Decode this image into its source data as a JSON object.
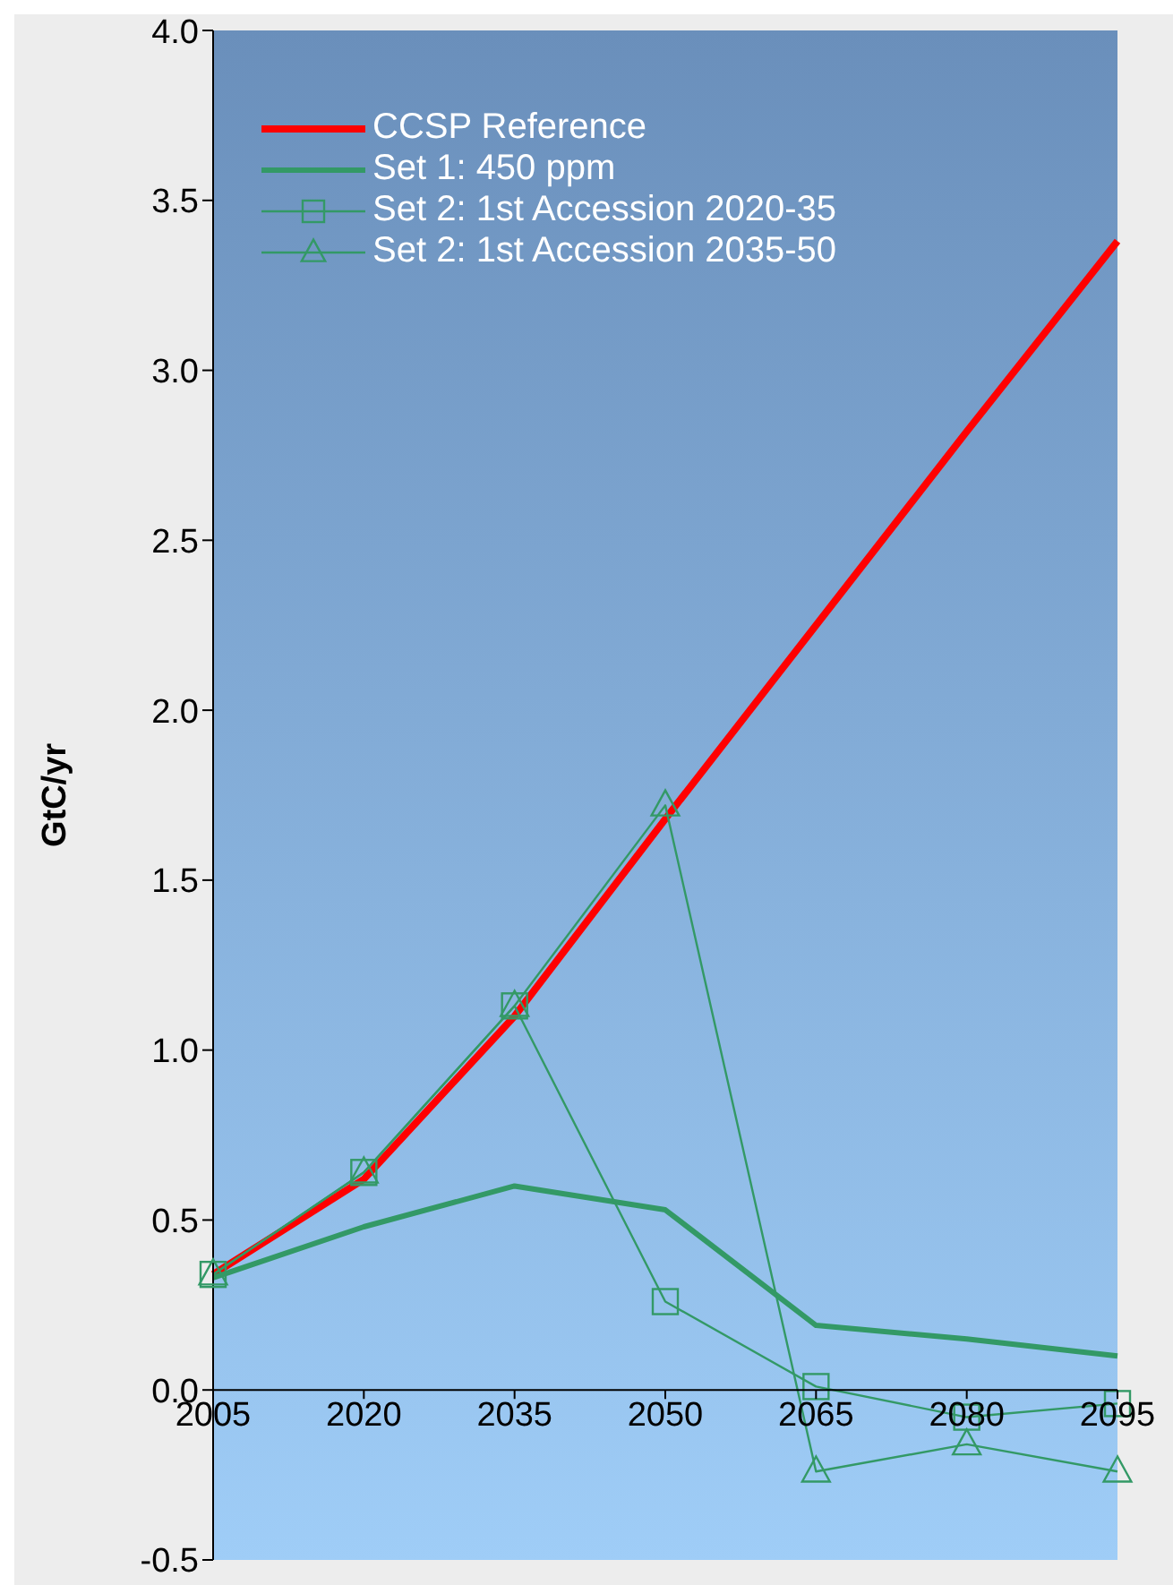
{
  "chart_data": {
    "type": "line",
    "ylabel": "GtC/yr",
    "categories": [
      "2005",
      "2020",
      "2035",
      "2050",
      "2065",
      "2080",
      "2095"
    ],
    "ylim": [
      -0.5,
      4.0
    ],
    "yticks": [
      {
        "value": -0.5,
        "label": "-0.5"
      },
      {
        "value": 0,
        "label": "0.0"
      },
      {
        "value": 0.5,
        "label": "0.5"
      },
      {
        "value": 1,
        "label": "1.0"
      },
      {
        "value": 1.5,
        "label": "1.5"
      },
      {
        "value": 2,
        "label": "2.0"
      },
      {
        "value": 2.5,
        "label": "2.5"
      },
      {
        "value": 3,
        "label": "3.0"
      },
      {
        "value": 3.5,
        "label": "3.5"
      },
      {
        "value": 4,
        "label": "4.0"
      }
    ],
    "grid": false,
    "legend": "top left",
    "line_style": "solid",
    "series": [
      {
        "name": "CCSP Reference",
        "color": "#ff0000",
        "marker": "none",
        "values": [
          0.34,
          0.62,
          1.1,
          1.68,
          2.25,
          2.82,
          3.38
        ]
      },
      {
        "name": "Set 1:  450 ppm",
        "color": "#339966",
        "marker": "none",
        "values": [
          0.33,
          0.48,
          0.6,
          0.53,
          0.19,
          0.15,
          0.1
        ]
      },
      {
        "name": "Set 2:  1st Accession 2020-35",
        "color": "#339966",
        "marker": "square",
        "values": [
          0.34,
          0.64,
          1.13,
          0.26,
          0.01,
          -0.08,
          -0.04
        ]
      },
      {
        "name": "Set 2:  1st Accession 2035-50",
        "color": "#339966",
        "marker": "triangle",
        "values": [
          0.34,
          0.64,
          1.13,
          1.72,
          -0.24,
          -0.16,
          -0.24
        ]
      }
    ]
  }
}
